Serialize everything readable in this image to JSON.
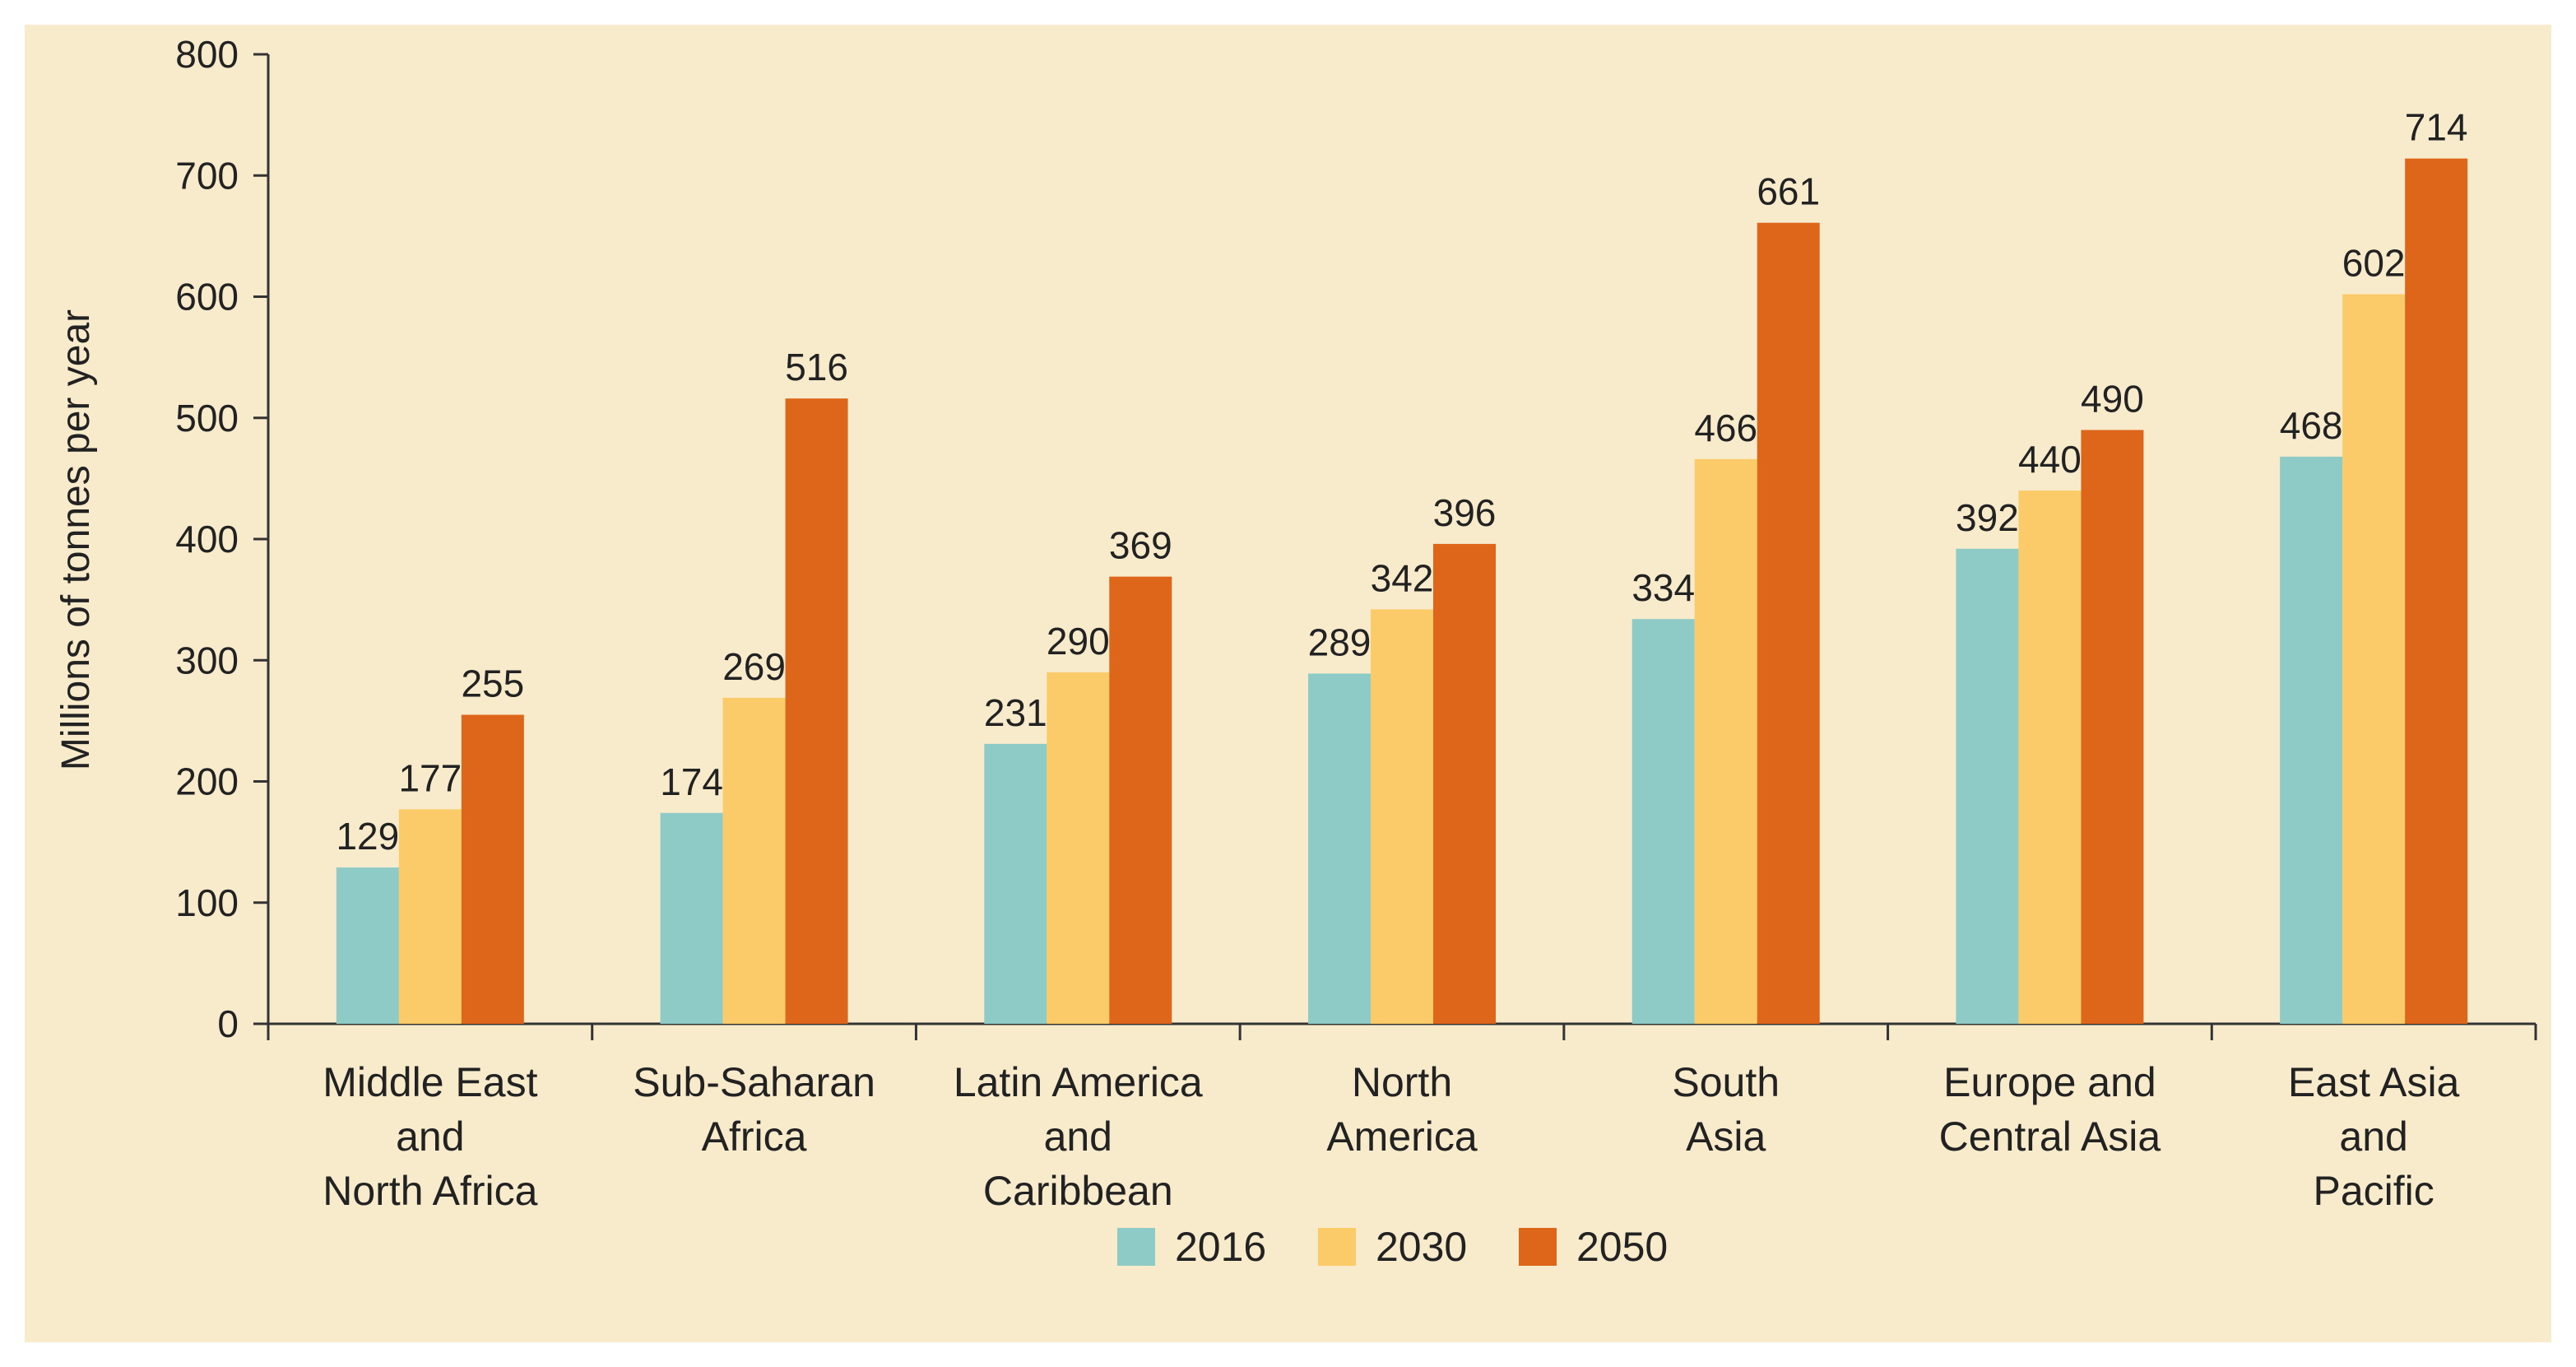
{
  "chart_data": {
    "type": "bar",
    "title": "",
    "xlabel": "",
    "ylabel": "Millions of tonnes per year",
    "ylim": [
      0,
      800
    ],
    "yticks": [
      0,
      100,
      200,
      300,
      400,
      500,
      600,
      700,
      800
    ],
    "grid": false,
    "legend_position": "bottom-center",
    "categories": [
      [
        "Middle East",
        "and",
        "North Africa"
      ],
      [
        "Sub-Saharan",
        "Africa"
      ],
      [
        "Latin America",
        "and",
        "Caribbean"
      ],
      [
        "North",
        "America"
      ],
      [
        "South",
        "Asia"
      ],
      [
        "Europe and",
        "Central Asia"
      ],
      [
        "East Asia",
        "and",
        "Pacific"
      ]
    ],
    "series": [
      {
        "name": "2016",
        "color": "#8ecbc7",
        "values": [
          129,
          174,
          231,
          289,
          334,
          392,
          468
        ]
      },
      {
        "name": "2030",
        "color": "#fccb69",
        "values": [
          177,
          269,
          290,
          342,
          466,
          440,
          602
        ]
      },
      {
        "name": "2050",
        "color": "#de661b",
        "values": [
          255,
          516,
          369,
          396,
          661,
          490,
          714
        ]
      }
    ]
  }
}
